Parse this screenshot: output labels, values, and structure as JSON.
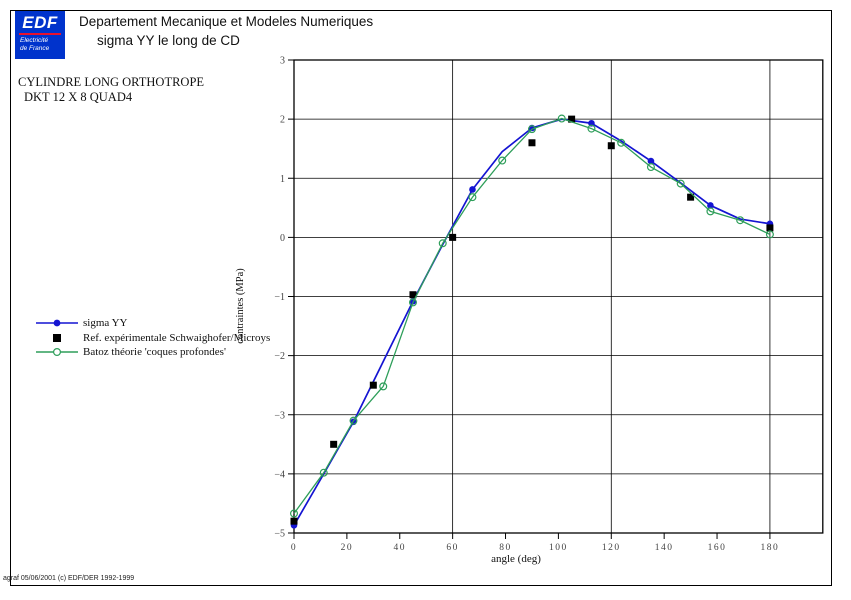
{
  "header": {
    "logo_name": "EDF",
    "logo_sub1": "Electricité",
    "logo_sub2": "de France",
    "title_line1": "Departement Mecanique et Modeles Numeriques",
    "title_line2": "sigma YY le long de CD"
  },
  "info": {
    "line1": "CYLINDRE LONG ORTHOTROPE",
    "line2": "DKT 12 X 8 QUAD4"
  },
  "footer": "agraf 05/06/2001 (c) EDF/DER 1992-1999",
  "colors": {
    "logo_bg": "#0033cc",
    "logo_rule": "#e8112d",
    "series_blue": "#1414d2",
    "series_green": "#2e9e5a",
    "series_black": "#000000",
    "grid": "#000000",
    "tick_text": "#444444"
  },
  "legend": {
    "items": [
      {
        "label": "sigma YY",
        "marker": "filled-circle",
        "line": true,
        "color": "#1414d2"
      },
      {
        "label": "Ref. expérimentale Schwaighofer/Microys",
        "marker": "filled-square",
        "line": false,
        "color": "#000000"
      },
      {
        "label": "Batoz théorie 'coques profondes'",
        "marker": "open-circle",
        "line": true,
        "color": "#2e9e5a"
      }
    ]
  },
  "chart_data": {
    "type": "line",
    "title": "sigma YY le long de CD",
    "xlabel": "angle (deg)",
    "ylabel": "contraintes (MPa)",
    "xlim": [
      0,
      200
    ],
    "ylim": [
      -5,
      3
    ],
    "x_ticks": [
      0,
      20,
      40,
      60,
      80,
      100,
      120,
      140,
      160,
      180
    ],
    "y_ticks": [
      3,
      2,
      1,
      0,
      -1,
      -2,
      -3,
      -4,
      -5
    ],
    "x_gridlines": [
      60,
      120,
      180
    ],
    "y_gridlines": [
      2,
      1,
      0,
      -1,
      -2,
      -3,
      -4
    ],
    "grid": true,
    "legend_position": "left-middle",
    "series": [
      {
        "name": "sigma YY",
        "mode": "line+markers",
        "marker": "filled-circle",
        "color": "#1414d2",
        "marker_every": 2,
        "x": [
          0,
          11.25,
          22.5,
          33.75,
          45,
          56.25,
          67.5,
          78.75,
          90,
          101.25,
          112.5,
          123.75,
          135,
          146.25,
          157.5,
          168.75,
          180
        ],
        "y": [
          -4.87,
          -4.0,
          -3.12,
          -2.1,
          -1.08,
          -0.12,
          0.81,
          1.45,
          1.85,
          2.0,
          1.93,
          1.63,
          1.29,
          0.92,
          0.54,
          0.31,
          0.23
        ]
      },
      {
        "name": "Ref. expérimentale Schwaighofer/Microys",
        "mode": "markers",
        "marker": "filled-square",
        "color": "#000000",
        "marker_every": 1,
        "x": [
          0,
          15,
          30,
          45,
          60,
          90,
          105,
          120,
          150,
          180
        ],
        "y": [
          -4.8,
          -3.5,
          -2.5,
          -0.97,
          0.0,
          1.6,
          2.0,
          1.55,
          0.68,
          0.16
        ]
      },
      {
        "name": "Batoz théorie 'coques profondes'",
        "mode": "line+markers",
        "marker": "open-circle",
        "color": "#2e9e5a",
        "marker_every": 1,
        "x": [
          0,
          11.25,
          22.5,
          33.75,
          45,
          56.25,
          67.5,
          78.75,
          90,
          101.25,
          112.5,
          123.75,
          135,
          146.25,
          157.5,
          168.75,
          180
        ],
        "y": [
          -4.67,
          -3.98,
          -3.1,
          -2.52,
          -1.1,
          -0.1,
          0.68,
          1.3,
          1.83,
          2.01,
          1.84,
          1.6,
          1.19,
          0.91,
          0.44,
          0.29,
          0.05
        ]
      }
    ]
  }
}
